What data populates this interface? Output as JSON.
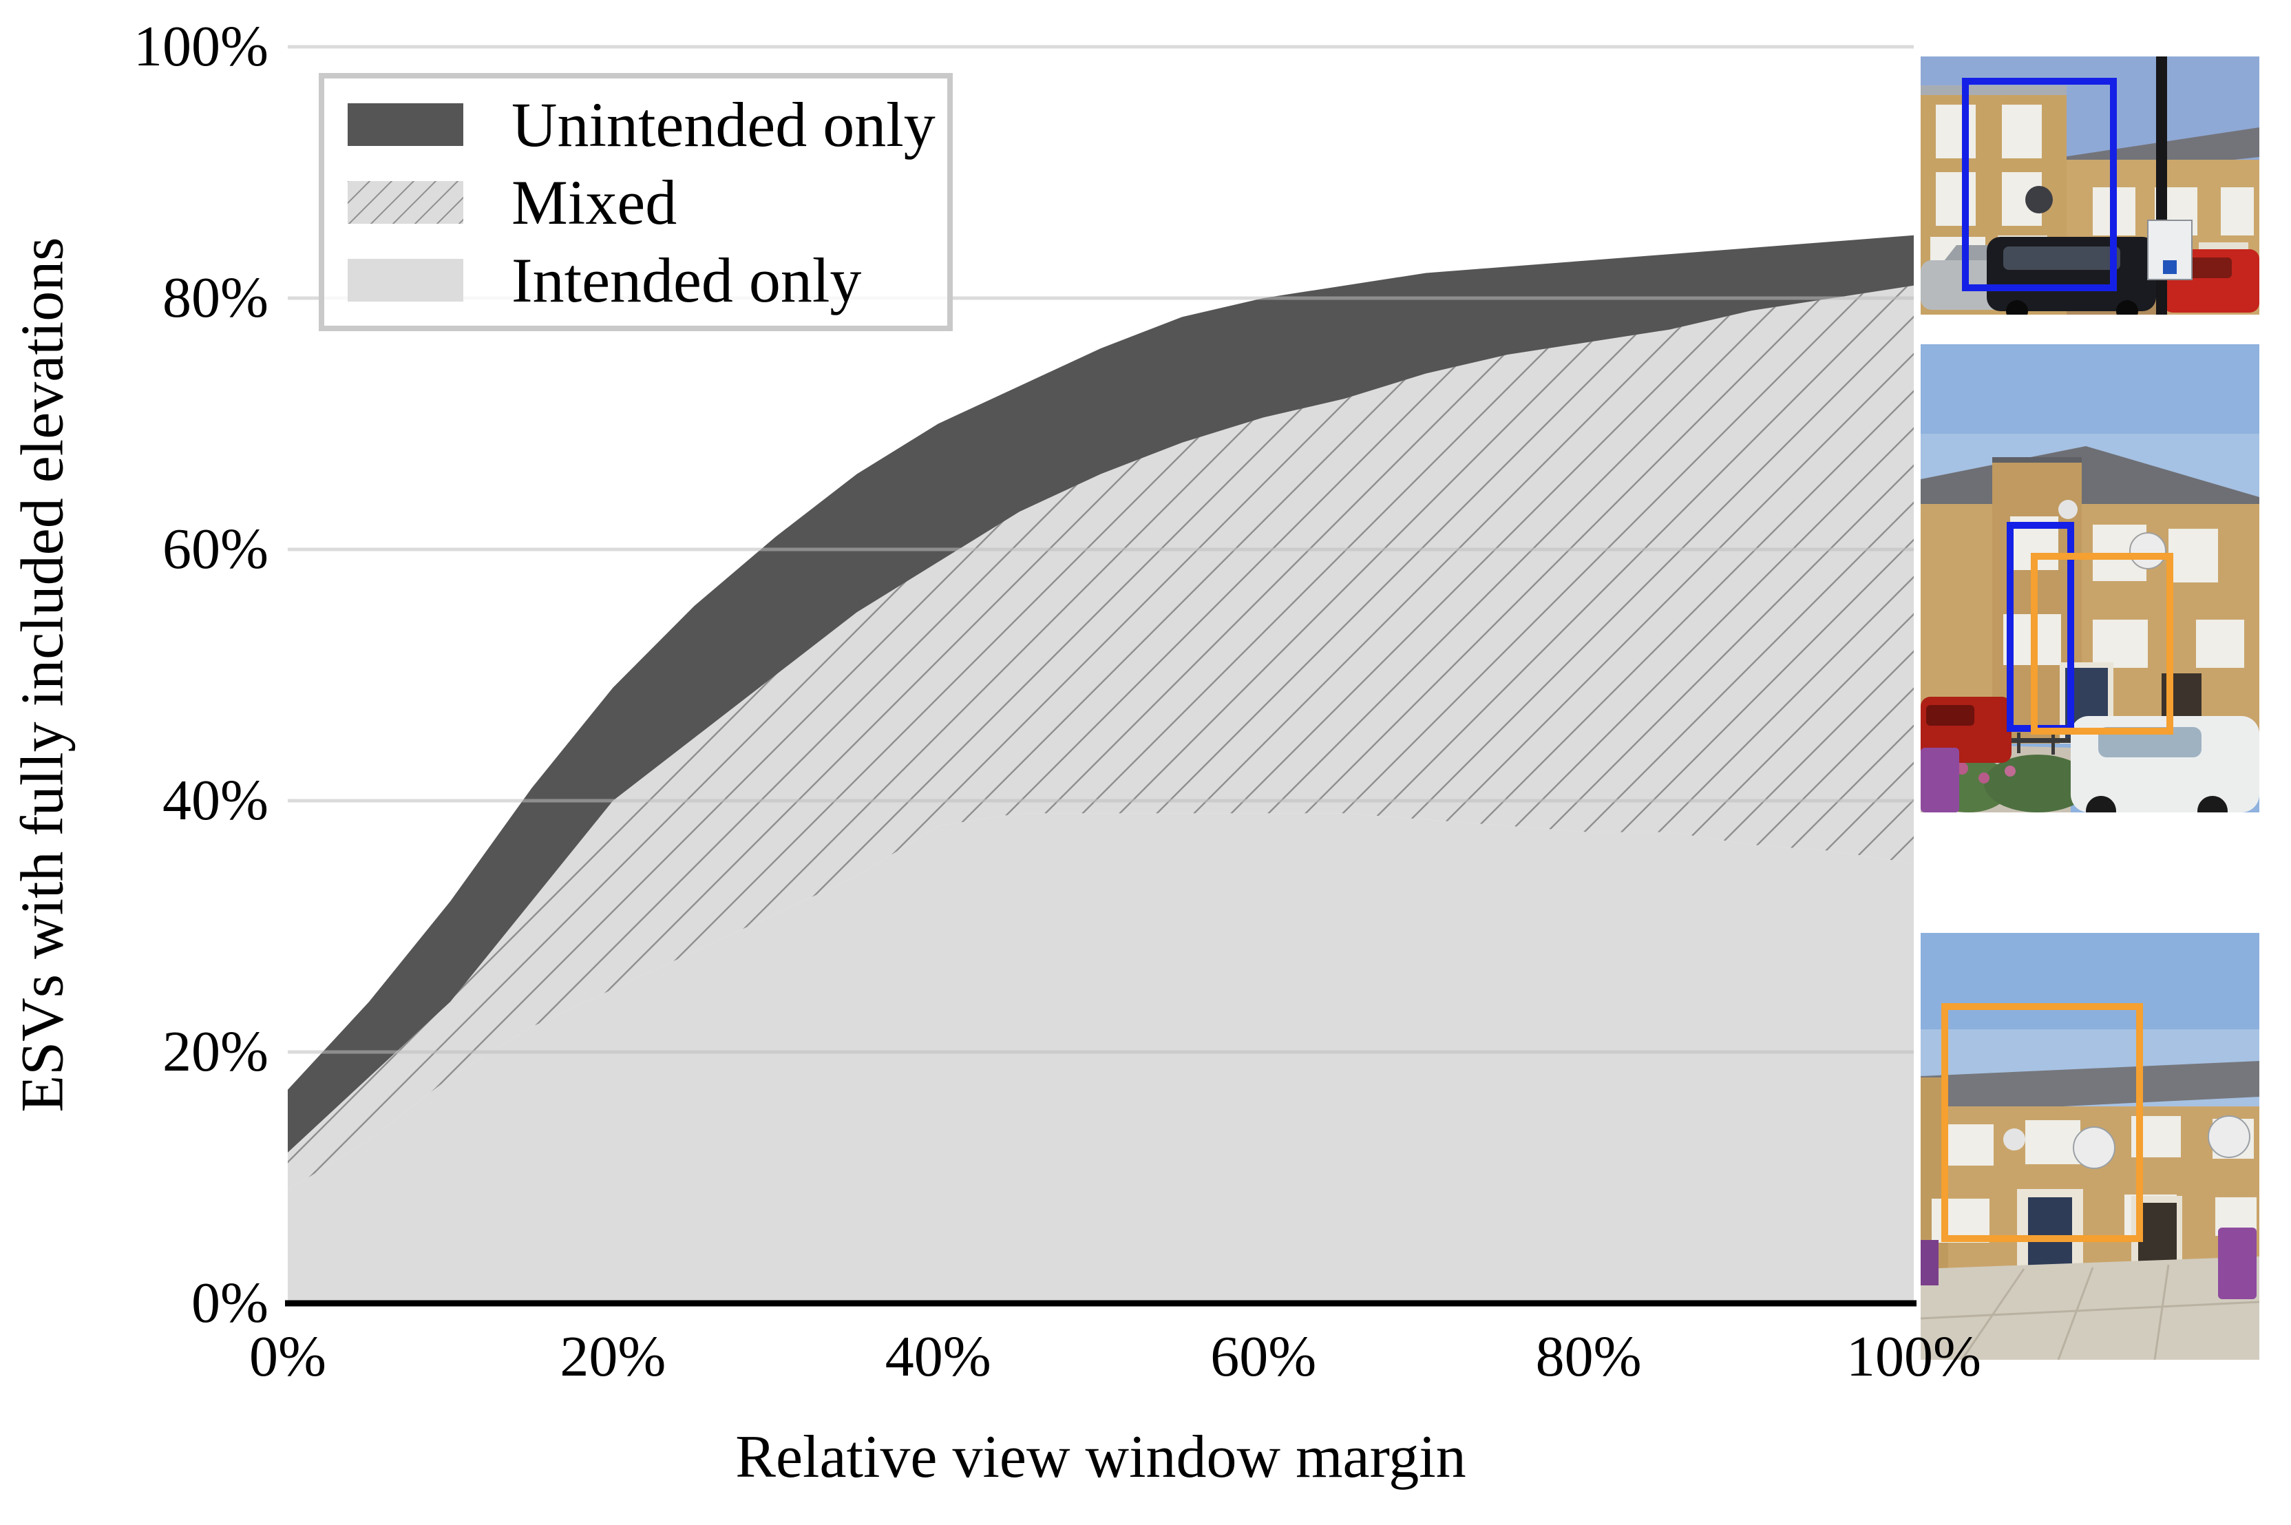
{
  "figure": {
    "y_axis": {
      "label": "ESVs with fully included elevations",
      "ticks": [
        {
          "value": 0,
          "label": "0%"
        },
        {
          "value": 20,
          "label": "20%"
        },
        {
          "value": 40,
          "label": "40%"
        },
        {
          "value": 60,
          "label": "60%"
        },
        {
          "value": 80,
          "label": "80%"
        },
        {
          "value": 100,
          "label": "100%"
        }
      ]
    },
    "x_axis": {
      "label": "Relative view window margin",
      "ticks": [
        {
          "value": 0,
          "label": "0%"
        },
        {
          "value": 20,
          "label": "20%"
        },
        {
          "value": 40,
          "label": "40%"
        },
        {
          "value": 60,
          "label": "60%"
        },
        {
          "value": 80,
          "label": "80%"
        },
        {
          "value": 100,
          "label": "100%"
        }
      ]
    },
    "legend": {
      "items": [
        {
          "label": "Unintended only",
          "swatch": "dark-solid"
        },
        {
          "label": "Mixed",
          "swatch": "light-hatched"
        },
        {
          "label": "Intended only",
          "swatch": "light-solid"
        }
      ]
    }
  },
  "chart_data": {
    "type": "area",
    "stacked": true,
    "title": "",
    "xlabel": "Relative view window margin",
    "ylabel": "ESVs with fully included elevations",
    "xlim": [
      0,
      100
    ],
    "ylim": [
      0,
      100
    ],
    "grid": "horizontal",
    "legend_position": "upper-left",
    "x": [
      0,
      5,
      10,
      15,
      20,
      25,
      30,
      35,
      40,
      45,
      50,
      55,
      60,
      65,
      70,
      75,
      80,
      85,
      90,
      95,
      100
    ],
    "series": [
      {
        "name": "Intended only",
        "style": "light-solid",
        "values": [
          9,
          13,
          18,
          22,
          25,
          28,
          31,
          34,
          38,
          39,
          39,
          39,
          39,
          39,
          38.5,
          38,
          37.5,
          37.5,
          36.5,
          36,
          35
        ]
      },
      {
        "name": "Mixed",
        "style": "light-hatched",
        "values": [
          3,
          5,
          6,
          10,
          15,
          17,
          19,
          21,
          21,
          24,
          27,
          29.5,
          31.5,
          33,
          35.5,
          37.5,
          39,
          40,
          42.5,
          44,
          46
        ]
      },
      {
        "name": "Unintended only",
        "style": "dark-solid",
        "values": [
          5,
          6,
          8,
          9,
          9,
          10.5,
          11,
          11,
          11,
          10,
          10,
          10,
          9.5,
          9,
          8,
          7,
          6.5,
          6,
          5,
          4.5,
          4
        ]
      }
    ],
    "cumulative_tops": {
      "intended_only": [
        9,
        13,
        18,
        22,
        25,
        28,
        31,
        34,
        38,
        39,
        39,
        39,
        39,
        39,
        38.5,
        38,
        37.5,
        37.5,
        36.5,
        36,
        35
      ],
      "mixed": [
        12,
        18,
        24,
        32,
        40,
        45,
        50,
        55,
        59,
        63,
        66,
        68.5,
        70.5,
        72,
        74,
        75.5,
        76.5,
        77.5,
        79,
        80,
        81
      ],
      "unintended_only": [
        17,
        24,
        32,
        41,
        49,
        55.5,
        61,
        66,
        70,
        73,
        76,
        78.5,
        80,
        81,
        82,
        82.5,
        83,
        83.5,
        84,
        84.5,
        85
      ]
    }
  },
  "photos": [
    {
      "position": "top",
      "content": "street-view of terraced houses with parked cars",
      "boxes": [
        "blue"
      ]
    },
    {
      "position": "middle",
      "content": "street-view of terraced houses with white car",
      "boxes": [
        "blue",
        "orange"
      ]
    },
    {
      "position": "bottom",
      "content": "street-view of terraced houses with paved path",
      "boxes": [
        "orange"
      ]
    }
  ],
  "colors": {
    "unintended_area": "#555555",
    "mixed_area": "#dcdcdc",
    "intended_area": "#dcdcdc",
    "hatch_line": "#8f8f8f",
    "gridline": "#bdbdbd",
    "axis": "#000000",
    "bbox_blue": "#1420e6",
    "bbox_orange": "#f5a030"
  }
}
